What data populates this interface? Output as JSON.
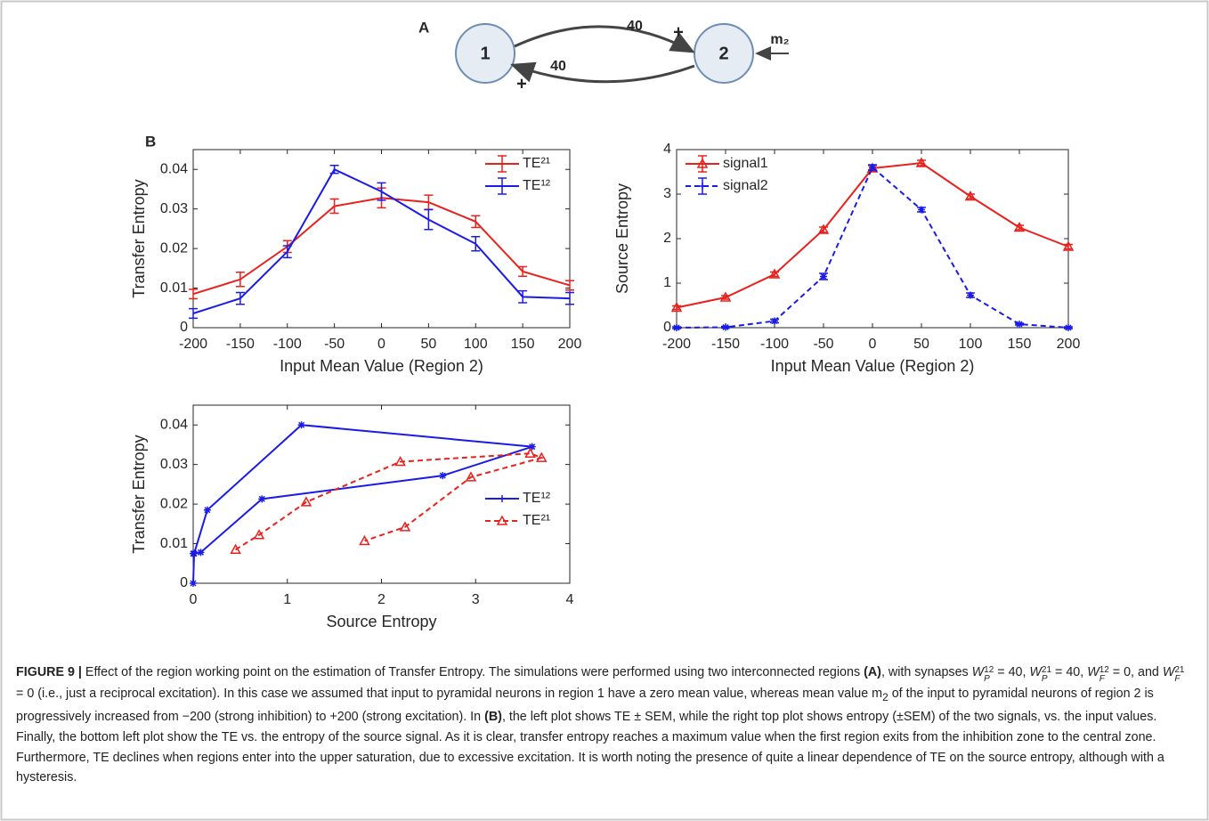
{
  "diagram": {
    "panel_label": "A",
    "nodes": [
      {
        "label": "1"
      },
      {
        "label": "2"
      }
    ],
    "edges": [
      {
        "weight": "40",
        "sign": "+"
      },
      {
        "weight": "40",
        "sign": "+"
      }
    ],
    "input": "m₂"
  },
  "panel_b_label": "B",
  "chart_data": [
    {
      "type": "line",
      "xlabel": "Input Mean Value (Region 2)",
      "ylabel": "Transfer Entropy",
      "x": [
        -200,
        -150,
        -100,
        -50,
        0,
        50,
        100,
        150,
        200
      ],
      "xlim": [
        -200,
        200
      ],
      "xticks": [
        -200,
        -150,
        -100,
        -50,
        0,
        50,
        100,
        150,
        200
      ],
      "ylim": [
        0,
        0.045
      ],
      "yticks": [
        0,
        0.01,
        0.02,
        0.03,
        0.04
      ],
      "legend": "upper right",
      "series": [
        {
          "name": "TE²¹",
          "color": "#e8211d",
          "linestyle": "-",
          "marker": "none",
          "values": [
            0.0085,
            0.0122,
            0.0205,
            0.0307,
            0.0328,
            0.0317,
            0.0268,
            0.0142,
            0.0107
          ],
          "errors": [
            0.0012,
            0.0018,
            0.0015,
            0.0018,
            0.0025,
            0.0018,
            0.0015,
            0.0012,
            0.0012
          ]
        },
        {
          "name": "TE¹²",
          "color": "#1b1be8",
          "linestyle": "-",
          "marker": "none",
          "values": [
            0.0036,
            0.0074,
            0.0192,
            0.04,
            0.0344,
            0.0273,
            0.0212,
            0.0078,
            0.0074
          ],
          "errors": [
            0.0012,
            0.0015,
            0.0015,
            0.001,
            0.0022,
            0.0025,
            0.0018,
            0.0015,
            0.0015
          ]
        }
      ]
    },
    {
      "type": "line",
      "xlabel": "Input Mean Value (Region 2)",
      "ylabel": "Source Entropy",
      "x": [
        -200,
        -150,
        -100,
        -50,
        0,
        50,
        100,
        150,
        200
      ],
      "xlim": [
        -200,
        200
      ],
      "xticks": [
        -200,
        -150,
        -100,
        -50,
        0,
        50,
        100,
        150,
        200
      ],
      "ylim": [
        0,
        4
      ],
      "yticks": [
        0,
        1,
        2,
        3,
        4
      ],
      "legend": "upper left",
      "series": [
        {
          "name": "signal1",
          "color": "#e8211d",
          "linestyle": "-",
          "marker": "triangle",
          "values": [
            0.45,
            0.68,
            1.2,
            2.2,
            3.58,
            3.7,
            2.95,
            2.25,
            1.82
          ],
          "errors": [
            0.04,
            0.04,
            0.05,
            0.06,
            0.06,
            0.06,
            0.05,
            0.05,
            0.05
          ]
        },
        {
          "name": "signal2",
          "color": "#1b1be8",
          "linestyle": "--",
          "marker": "star",
          "values": [
            0.0,
            0.01,
            0.15,
            1.15,
            3.6,
            2.65,
            0.73,
            0.08,
            0.0
          ],
          "errors": [
            0.02,
            0.02,
            0.04,
            0.07,
            0.06,
            0.05,
            0.05,
            0.02,
            0.02
          ]
        }
      ]
    },
    {
      "type": "line",
      "xlabel": "Source Entropy",
      "ylabel": "Transfer Entropy",
      "xlim": [
        0,
        4
      ],
      "xticks": [
        0,
        1,
        2,
        3,
        4
      ],
      "ylim": [
        0,
        0.045
      ],
      "yticks": [
        0,
        0.01,
        0.02,
        0.03,
        0.04
      ],
      "legend": "right",
      "series": [
        {
          "name": "TE¹²",
          "color": "#1b1be8",
          "linestyle": "-",
          "marker": "star",
          "x": [
            0,
            0.01,
            0.15,
            1.15,
            3.6,
            2.65,
            0.73,
            0.08,
            0
          ],
          "values": [
            0,
            0.0075,
            0.0185,
            0.04,
            0.0345,
            0.0272,
            0.0213,
            0.0078,
            0.0075
          ]
        },
        {
          "name": "TE²¹",
          "color": "#e8211d",
          "linestyle": "--",
          "marker": "triangle",
          "x": [
            0.45,
            0.7,
            1.2,
            2.2,
            3.58,
            3.7,
            2.95,
            2.25,
            1.82
          ],
          "values": [
            0.0085,
            0.0122,
            0.0205,
            0.0307,
            0.0328,
            0.0317,
            0.0268,
            0.0142,
            0.0107
          ]
        }
      ]
    }
  ],
  "caption": {
    "label": "FIGURE 9 |",
    "segments": [
      "Effect of the region working point on the estimation of Transfer Entropy. The simulations were performed using two interconnected regions ",
      "(A)",
      ", with synapses ",
      "W",
      "P",
      "12",
      " = 40, ",
      "W",
      "P",
      "21",
      " = 40, ",
      "W",
      "F",
      "12",
      " = 0, and ",
      "W",
      "F",
      "21",
      " = 0 (i.e., just a reciprocal excitation). In this case we assumed that input to pyramidal neurons in region 1 have a zero mean value, whereas mean value m",
      "2",
      " of the input to pyramidal neurons of region 2 is progressively increased from −200 (strong inhibition) to +200 (strong excitation). In ",
      "(B)",
      ", the left plot shows TE ± SEM, while the right top plot shows entropy (±SEM) of the two signals, vs. the input values. Finally, the bottom left plot show the TE vs. the entropy of the source signal. As it is clear, transfer entropy reaches a maximum value when the first region exits from the inhibition zone to the central zone. Furthermore, TE declines when regions enter into the upper saturation, due to excessive excitation. It is worth noting the presence of quite a linear dependence of TE on the source entropy, although with a hysteresis."
    ]
  }
}
